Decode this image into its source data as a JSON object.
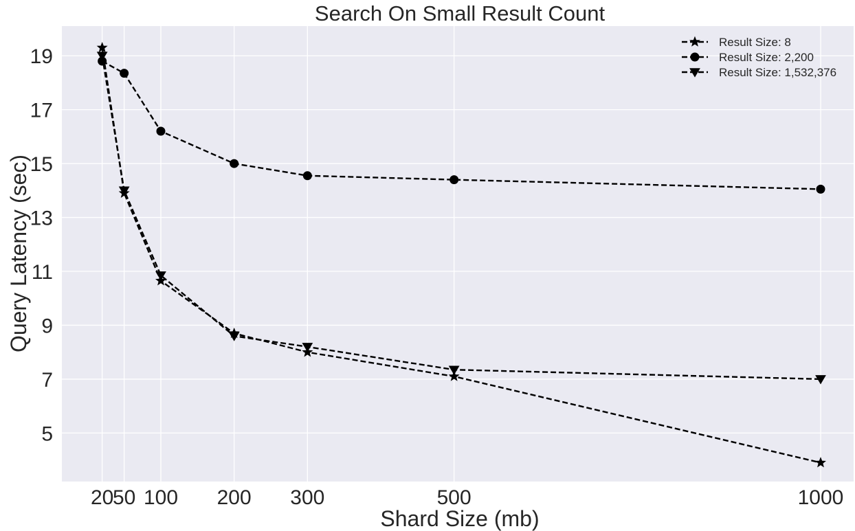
{
  "chart_data": {
    "type": "line",
    "title": "Search On Small Result Count",
    "xlabel": "Shard Size (mb)",
    "ylabel": "Query Latency (sec)",
    "x": [
      20,
      50,
      100,
      200,
      300,
      500,
      1000
    ],
    "xticks": [
      20,
      50,
      100,
      200,
      300,
      500,
      1000
    ],
    "xtick_labels": [
      "20",
      "50",
      "100",
      "200",
      "300",
      "500",
      "1000"
    ],
    "xlim": [
      -35,
      1045
    ],
    "yticks": [
      5,
      7,
      9,
      11,
      13,
      15,
      17,
      19
    ],
    "ytick_labels": [
      "5",
      "7",
      "9",
      "11",
      "13",
      "15",
      "17",
      "19"
    ],
    "ylim": [
      3.2,
      20.1
    ],
    "grid": true,
    "legend_position": "top-right",
    "series": [
      {
        "name": "Result Size: 8",
        "marker": "star",
        "linestyle": "dashed",
        "color": "#000000",
        "values": [
          19.3,
          13.9,
          10.65,
          8.7,
          8.0,
          7.1,
          3.9
        ]
      },
      {
        "name": "Result Size: 2,200",
        "marker": "circle",
        "linestyle": "dashed",
        "color": "#000000",
        "values": [
          18.8,
          18.35,
          16.2,
          15.0,
          14.55,
          14.4,
          14.05
        ]
      },
      {
        "name": "Result Size: 1,532,376",
        "marker": "triangle-down",
        "linestyle": "dashed",
        "color": "#000000",
        "values": [
          19.0,
          14.0,
          10.85,
          8.6,
          8.2,
          7.35,
          7.0
        ]
      }
    ]
  }
}
